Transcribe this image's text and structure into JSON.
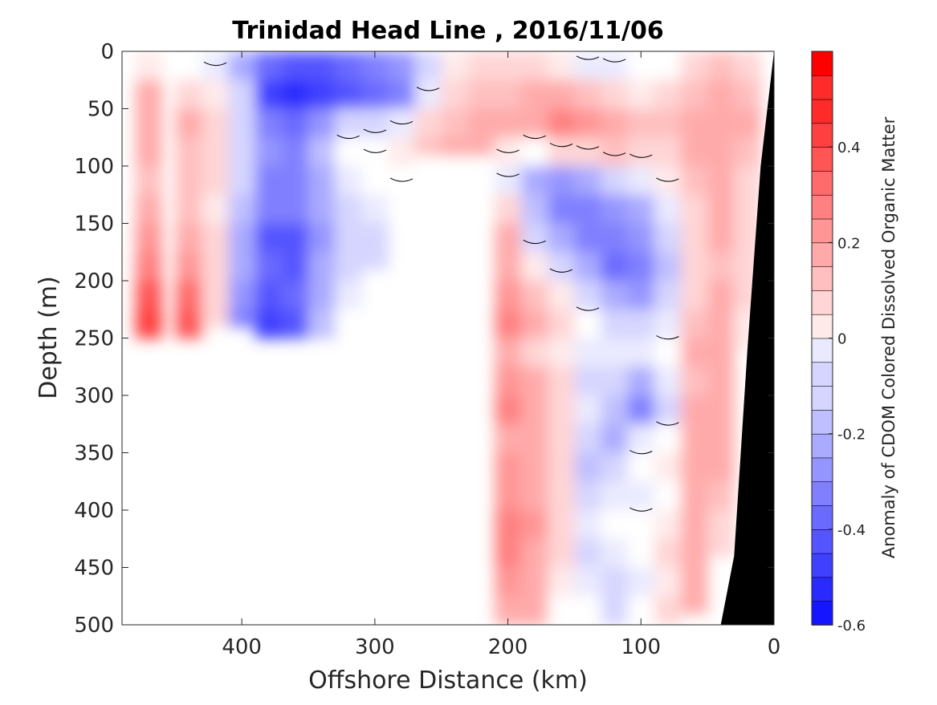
{
  "chart_data": {
    "type": "heatmap",
    "title": "Trinidad Head Line , 2016/11/06",
    "xlabel": "Offshore Distance (km)",
    "ylabel": "Depth (m)",
    "colorbar_label": "Anomaly of CDOM Colored Dissolved Organic Matter",
    "x_reversed": true,
    "y_reversed": true,
    "xlim": [
      0,
      490
    ],
    "ylim": [
      0,
      500
    ],
    "x_ticks": [
      400,
      300,
      200,
      100,
      0
    ],
    "y_ticks": [
      0,
      50,
      100,
      150,
      200,
      250,
      300,
      350,
      400,
      450,
      500
    ],
    "clim": [
      -0.6,
      0.6
    ],
    "colorbar_ticks": [
      -0.6,
      -0.4,
      -0.2,
      0,
      0.2,
      0.4
    ],
    "color_scale": {
      "negative": "#0000ff",
      "zero": "#ffffff",
      "positive": "#ff0000"
    },
    "contour_levels": [
      0
    ],
    "bottom_color": "#000000",
    "grid": false,
    "profiles": [
      {
        "x": 470,
        "max_depth": 250,
        "anomaly": [
          0.05,
          0.18,
          0.22,
          0.2,
          0.16,
          0.18,
          0.25,
          0.32,
          0.42,
          0.45
        ]
      },
      {
        "x": 440,
        "max_depth": 250,
        "anomaly": [
          0.02,
          0.12,
          0.18,
          0.16,
          0.14,
          0.15,
          0.2,
          0.26,
          0.35,
          0.4
        ]
      },
      {
        "x": 420,
        "max_depth": 240,
        "anomaly": [
          -0.05,
          0.06,
          0.1,
          0.1,
          0.08,
          0.06,
          0.08,
          0.1,
          0.12,
          0.1
        ]
      },
      {
        "x": 400,
        "max_depth": 240,
        "anomaly": [
          -0.2,
          -0.1,
          -0.08,
          -0.1,
          -0.12,
          -0.15,
          -0.2,
          -0.22,
          -0.25,
          -0.3
        ]
      },
      {
        "x": 380,
        "max_depth": 250,
        "anomaly": [
          -0.35,
          -0.45,
          -0.3,
          -0.25,
          -0.28,
          -0.3,
          -0.38,
          -0.35,
          -0.4,
          -0.45
        ]
      },
      {
        "x": 360,
        "max_depth": 260,
        "anomaly": [
          -0.4,
          -0.52,
          -0.35,
          -0.28,
          -0.3,
          -0.32,
          -0.42,
          -0.38,
          -0.35,
          -0.4
        ]
      },
      {
        "x": 340,
        "max_depth": 250,
        "anomaly": [
          -0.38,
          -0.45,
          -0.25,
          -0.15,
          -0.18,
          -0.2,
          -0.25,
          -0.22,
          -0.2,
          -0.15
        ]
      },
      {
        "x": 320,
        "max_depth": 240,
        "anomaly": [
          -0.35,
          -0.4,
          -0.1,
          0.0,
          -0.05,
          -0.08,
          -0.1,
          -0.08,
          -0.05,
          -0.02
        ]
      },
      {
        "x": 300,
        "max_depth": 190,
        "anomaly": [
          -0.3,
          -0.35,
          -0.08,
          0.02,
          -0.02,
          -0.05,
          -0.1,
          -0.12,
          -0.1,
          -0.08
        ]
      },
      {
        "x": 280,
        "max_depth": 140,
        "anomaly": [
          -0.25,
          -0.3,
          -0.05,
          0.05,
          0.02,
          -0.02,
          -0.05,
          -0.05
        ]
      },
      {
        "x": 260,
        "max_depth": 90,
        "anomaly": [
          -0.1,
          -0.05,
          0.1,
          0.15,
          0.12
        ]
      },
      {
        "x": 240,
        "max_depth": 90,
        "anomaly": [
          0.05,
          0.1,
          0.15,
          0.18,
          0.15
        ]
      },
      {
        "x": 220,
        "max_depth": 90,
        "anomaly": [
          0.08,
          0.15,
          0.18,
          0.2,
          0.16
        ]
      },
      {
        "x": 200,
        "max_depth": 500,
        "anomaly": [
          0.08,
          0.15,
          0.18,
          0.05,
          -0.05,
          0.1,
          0.18,
          0.22,
          0.25,
          0.28,
          0.22,
          0.25,
          0.28,
          0.22,
          0.25,
          0.25,
          0.3,
          0.28,
          0.25,
          0.22,
          0.2
        ]
      },
      {
        "x": 180,
        "max_depth": 500,
        "anomaly": [
          0.1,
          0.18,
          0.22,
          0.0,
          -0.2,
          -0.15,
          -0.1,
          0.05,
          0.15,
          0.18,
          0.12,
          0.18,
          0.22,
          0.18,
          0.2,
          0.22,
          0.25,
          0.22,
          0.2,
          0.18,
          0.15
        ]
      },
      {
        "x": 160,
        "max_depth": 500,
        "anomaly": [
          0.05,
          0.2,
          0.28,
          0.1,
          -0.25,
          -0.3,
          -0.2,
          -0.1,
          0.05,
          0.1,
          0.05,
          0.1,
          0.12,
          0.1,
          0.08,
          0.1,
          0.12,
          0.1,
          0.05,
          0.02,
          0.0
        ]
      },
      {
        "x": 140,
        "max_depth": 500,
        "anomaly": [
          -0.05,
          0.15,
          0.25,
          0.12,
          -0.2,
          -0.28,
          -0.3,
          -0.2,
          -0.1,
          0.0,
          -0.05,
          -0.1,
          -0.05,
          -0.1,
          -0.15,
          -0.1,
          -0.05,
          -0.1,
          -0.05,
          -0.02,
          0.0
        ]
      },
      {
        "x": 120,
        "max_depth": 500,
        "anomaly": [
          -0.05,
          0.1,
          0.2,
          0.15,
          -0.1,
          -0.25,
          -0.3,
          -0.35,
          -0.2,
          -0.1,
          -0.05,
          -0.1,
          -0.15,
          -0.2,
          -0.1,
          -0.05,
          -0.02,
          -0.05,
          -0.1,
          -0.08,
          -0.05
        ]
      },
      {
        "x": 100,
        "max_depth": 500,
        "anomaly": [
          0.0,
          0.05,
          0.15,
          0.1,
          -0.05,
          -0.2,
          -0.25,
          -0.3,
          -0.25,
          -0.1,
          -0.05,
          -0.2,
          -0.3,
          -0.05,
          0.0,
          -0.05,
          0.0,
          -0.02,
          -0.05,
          -0.02,
          0.0
        ]
      },
      {
        "x": 80,
        "max_depth": 500,
        "anomaly": [
          0.02,
          0.08,
          0.15,
          0.12,
          0.05,
          -0.05,
          -0.1,
          -0.15,
          -0.1,
          -0.05,
          0.0,
          -0.05,
          -0.08,
          0.0,
          0.05,
          0.02,
          0.05,
          0.08,
          0.05,
          0.1,
          0.12
        ]
      },
      {
        "x": 60,
        "max_depth": 490,
        "anomaly": [
          0.1,
          0.15,
          0.2,
          0.18,
          0.15,
          0.12,
          0.1,
          0.08,
          0.1,
          0.15,
          0.18,
          0.15,
          0.18,
          0.2,
          0.18,
          0.2,
          0.22,
          0.2,
          0.18,
          0.2
        ]
      },
      {
        "x": 40,
        "max_depth": 440,
        "anomaly": [
          0.15,
          0.2,
          0.18,
          0.2,
          0.22,
          0.2,
          0.18,
          0.15,
          0.18,
          0.2,
          0.22,
          0.2,
          0.18,
          0.2,
          0.18,
          0.15,
          0.12,
          0.1
        ]
      },
      {
        "x": 20,
        "max_depth": 260,
        "anomaly": [
          0.12,
          0.15,
          0.18,
          0.15,
          0.12,
          0.1,
          0.12,
          0.1,
          0.08,
          0.05,
          0.05
        ]
      }
    ],
    "bottom_profile": [
      [
        0,
        0
      ],
      [
        10,
        100
      ],
      [
        20,
        260
      ],
      [
        30,
        440
      ],
      [
        40,
        500
      ]
    ]
  }
}
